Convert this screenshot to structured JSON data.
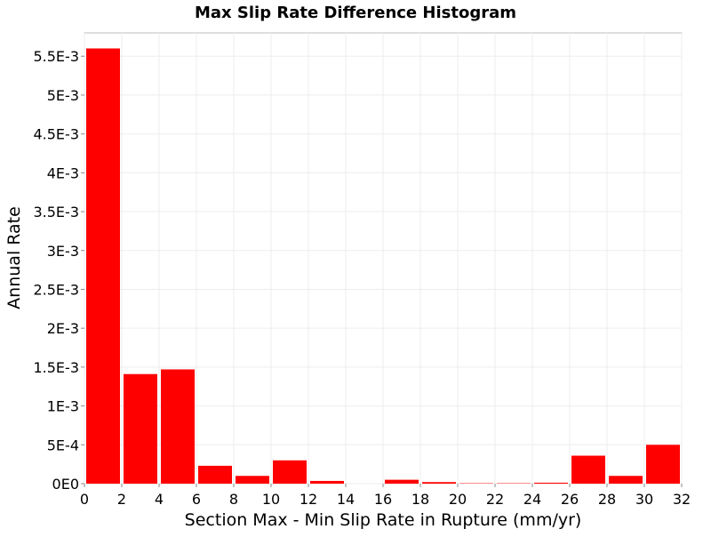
{
  "chart_data": {
    "type": "bar",
    "title": "Max Slip Rate Difference Histogram",
    "xlabel": "Section Max - Min Slip Rate in Rupture (mm/yr)",
    "ylabel": "Annual Rate",
    "xlim": [
      0,
      32
    ],
    "ylim": [
      0,
      0.0058
    ],
    "bin_width": 2,
    "bin_centers": [
      1,
      3,
      5,
      7,
      9,
      11,
      13,
      15,
      17,
      19,
      21,
      23,
      25,
      27,
      29,
      31
    ],
    "values": [
      0.0056,
      0.00141,
      0.00147,
      0.00023,
      0.0001,
      0.0003,
      3.5e-05,
      0.0,
      5e-05,
      2e-05,
      5e-06,
      5e-06,
      1.2e-05,
      0.00036,
      0.0001,
      0.0005
    ],
    "x_ticks": [
      "0",
      "2",
      "4",
      "6",
      "8",
      "10",
      "12",
      "14",
      "16",
      "18",
      "20",
      "22",
      "24",
      "26",
      "28",
      "30",
      "32"
    ],
    "y_ticks": [
      {
        "value": 0,
        "label": "0E0"
      },
      {
        "value": 0.0005,
        "label": "5E-4"
      },
      {
        "value": 0.001,
        "label": "1E-3"
      },
      {
        "value": 0.0015,
        "label": "1.5E-3"
      },
      {
        "value": 0.002,
        "label": "2E-3"
      },
      {
        "value": 0.0025,
        "label": "2.5E-3"
      },
      {
        "value": 0.003,
        "label": "3E-3"
      },
      {
        "value": 0.0035,
        "label": "3.5E-3"
      },
      {
        "value": 0.004,
        "label": "4E-3"
      },
      {
        "value": 0.0045,
        "label": "4.5E-3"
      },
      {
        "value": 0.005,
        "label": "5E-3"
      },
      {
        "value": 0.0055,
        "label": "5.5E-3"
      }
    ],
    "bar_color": "#ff0000",
    "grid": true,
    "legend": "none"
  }
}
